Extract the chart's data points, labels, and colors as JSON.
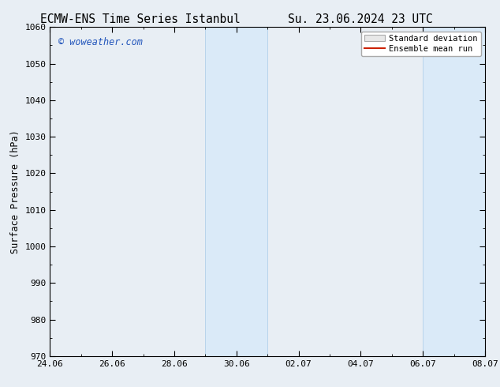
{
  "title_left": "ECMW-ENS Time Series Istanbul",
  "title_right": "Su. 23.06.2024 23 UTC",
  "ylabel": "Surface Pressure (hPa)",
  "ylim": [
    970,
    1060
  ],
  "yticks": [
    970,
    980,
    990,
    1000,
    1010,
    1020,
    1030,
    1040,
    1050,
    1060
  ],
  "xtick_labels": [
    "24.06",
    "26.06",
    "28.06",
    "30.06",
    "02.07",
    "04.07",
    "06.07",
    "08.07"
  ],
  "xtick_positions": [
    0,
    2,
    4,
    6,
    8,
    10,
    12,
    14
  ],
  "shaded_regions": [
    {
      "x_start": 5.0,
      "x_end": 7.0
    },
    {
      "x_start": 12.0,
      "x_end": 14.0
    }
  ],
  "shaded_color": "#daeaf8",
  "shaded_edge_color": "#b8d4eb",
  "watermark_text": "© woweather.com",
  "watermark_color": "#2255bb",
  "legend_std_label": "Standard deviation",
  "legend_mean_label": "Ensemble mean run",
  "legend_mean_color": "#cc2200",
  "legend_std_facecolor": "#e8e8e8",
  "legend_std_edgecolor": "#aaaaaa",
  "bg_color": "#e8eef4",
  "plot_bg_color": "#e8eef4",
  "title_fontsize": 10.5,
  "axis_fontsize": 8.5,
  "tick_fontsize": 8,
  "watermark_fontsize": 8.5
}
